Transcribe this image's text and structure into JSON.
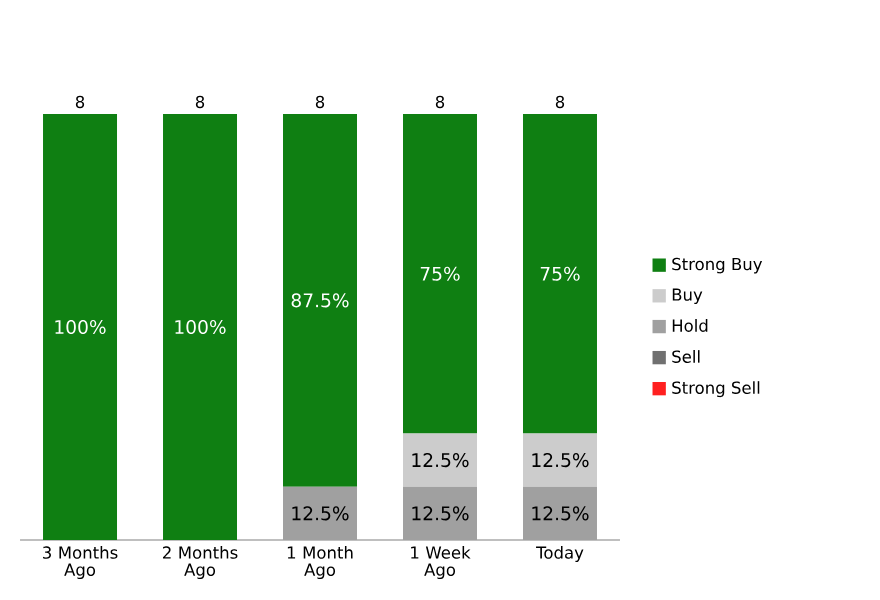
{
  "chart_data": {
    "type": "bar",
    "stacked": true,
    "categories": [
      "3 Months Ago",
      "2 Months Ago",
      "1 Month Ago",
      "1 Week Ago",
      "Today"
    ],
    "series": [
      {
        "name": "Strong Sell",
        "color": "#ff2020",
        "values": [
          null,
          null,
          null,
          null,
          null
        ]
      },
      {
        "name": "Sell",
        "color": "#707070",
        "values": [
          null,
          null,
          null,
          null,
          null
        ]
      },
      {
        "name": "Hold",
        "color": "#a0a0a0",
        "values": [
          null,
          null,
          12.5,
          12.5,
          12.5
        ],
        "value_labels": [
          null,
          null,
          "12.5%",
          "12.5%",
          "12.5%"
        ]
      },
      {
        "name": "Buy",
        "color": "#cccccc",
        "values": [
          null,
          null,
          null,
          12.5,
          12.5
        ],
        "value_labels": [
          null,
          null,
          null,
          "12.5%",
          "12.5%"
        ]
      },
      {
        "name": "Strong Buy",
        "color": "#0f7f12",
        "values": [
          100,
          100,
          87.5,
          75,
          75
        ],
        "value_labels": [
          "100%",
          "100%",
          "87.5%",
          "75%",
          "75%"
        ]
      }
    ],
    "annotations": [
      {
        "text": "8",
        "x": "3 Months Ago",
        "y": 100
      },
      {
        "text": "8",
        "x": "2 Months Ago",
        "y": 100
      },
      {
        "text": "8",
        "x": "1 Month Ago",
        "y": 100
      },
      {
        "text": "8",
        "x": "1 Week Ago",
        "y": 100
      },
      {
        "text": "8",
        "x": "Today",
        "y": 100
      }
    ],
    "ylim": [
      0,
      100
    ],
    "tick_labels": "x",
    "legend": "right"
  }
}
